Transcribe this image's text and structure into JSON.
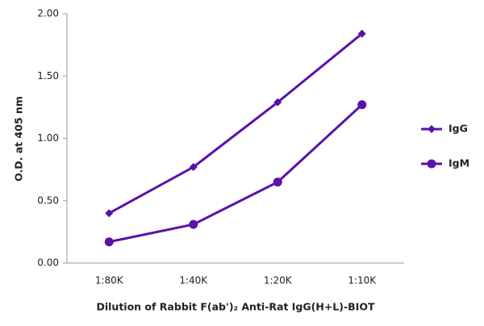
{
  "chart_data": {
    "type": "line",
    "categories": [
      "1:80K",
      "1:40K",
      "1:20K",
      "1:10K"
    ],
    "series": [
      {
        "name": "IgG",
        "color": "#5a12a8",
        "marker": "diamond",
        "values": [
          0.4,
          0.77,
          1.29,
          1.84
        ]
      },
      {
        "name": "IgM",
        "color": "#5a12a8",
        "marker": "circle",
        "values": [
          0.17,
          0.31,
          0.65,
          1.27
        ]
      }
    ],
    "ylim": [
      0,
      2
    ],
    "yticks": [
      {
        "value": 0,
        "label": "0.00"
      },
      {
        "value": 0.5,
        "label": "0.50"
      },
      {
        "value": 1,
        "label": "1.00"
      },
      {
        "value": 1.5,
        "label": "1.50"
      },
      {
        "value": 2,
        "label": "2.00"
      }
    ],
    "ylabel": "O.D. at 405 nm",
    "xlabel": "Dilution of Rabbit F(ab')₂ Anti-Rat IgG(H+L)-BIOT",
    "legend": "right",
    "grid": false
  }
}
